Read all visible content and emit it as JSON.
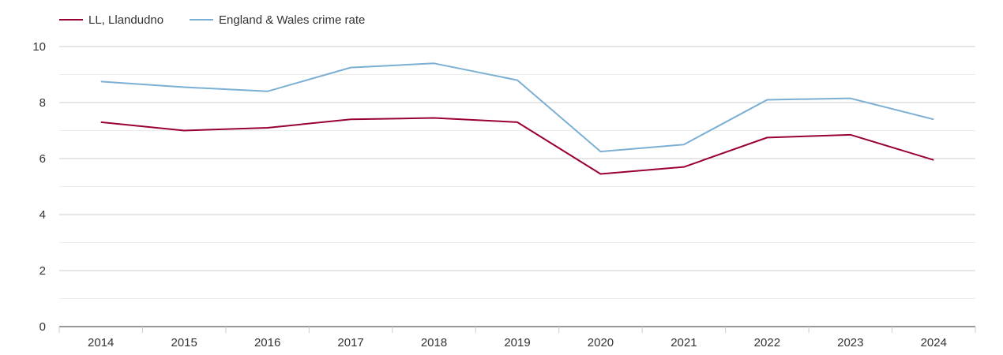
{
  "chart_data": {
    "type": "line",
    "title": "",
    "xlabel": "",
    "ylabel": "",
    "categories": [
      "2014",
      "2015",
      "2016",
      "2017",
      "2018",
      "2019",
      "2020",
      "2021",
      "2022",
      "2023",
      "2024"
    ],
    "ylim": [
      0,
      10
    ],
    "yticks": [
      "0",
      "2",
      "4",
      "6",
      "8",
      "10"
    ],
    "grid": true,
    "legend_position": "top-left",
    "series": [
      {
        "name": "LL, Llandudno",
        "color": "#990033",
        "values": [
          7.3,
          7.0,
          7.1,
          7.4,
          7.45,
          7.3,
          5.45,
          5.7,
          6.75,
          6.85,
          5.95
        ]
      },
      {
        "name": "England & Wales crime rate",
        "color": "#7bafd4",
        "values": [
          8.75,
          8.55,
          8.4,
          9.25,
          9.4,
          8.8,
          6.25,
          6.5,
          8.1,
          8.15,
          7.4
        ]
      }
    ]
  }
}
